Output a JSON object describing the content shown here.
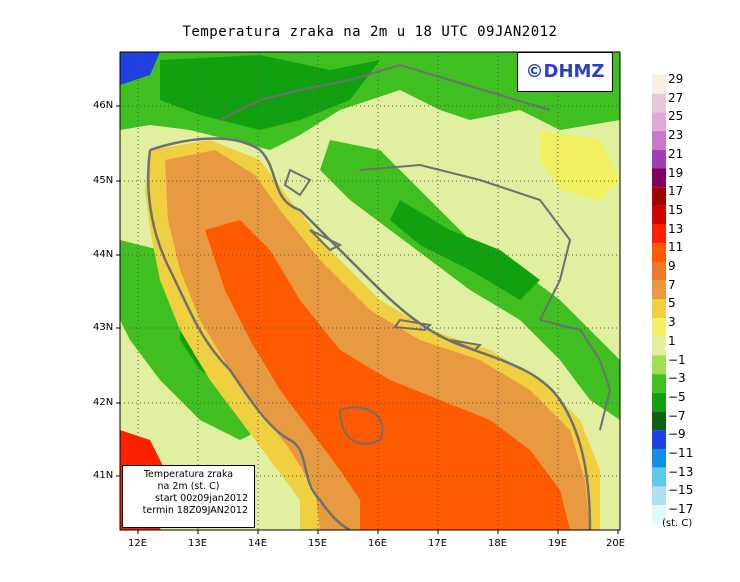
{
  "title": "Temperatura zraka na 2m u 18 UTC 09JAN2012",
  "logo": "©DHMZ",
  "info": {
    "line1": "Temperatura zraka",
    "line2": "na 2m (st. C)",
    "line3": "start 00z09jan2012",
    "line4": "termin 18Z09JAN2012"
  },
  "lat_labels": [
    "46N",
    "45N",
    "44N",
    "43N",
    "42N",
    "41N"
  ],
  "lon_labels": [
    "12E",
    "13E",
    "14E",
    "15E",
    "16E",
    "17E",
    "18E",
    "19E",
    "20E"
  ],
  "legend": {
    "labels": [
      "29",
      "27",
      "25",
      "23",
      "21",
      "19",
      "17",
      "15",
      "13",
      "11",
      "9",
      "7",
      "5",
      "3",
      "1",
      "−1",
      "−3",
      "−5",
      "−7",
      "−9",
      "−11",
      "−13",
      "−15",
      "−17"
    ],
    "colors": [
      "#fdf0e0",
      "#e8c8d8",
      "#e0a8d8",
      "#c878c8",
      "#a040b0",
      "#800060",
      "#a00000",
      "#d00000",
      "#ff2000",
      "#ff5a00",
      "#f07828",
      "#e89a40",
      "#f0d040",
      "#f0f060",
      "#e0f0a0",
      "#a0e050",
      "#40c020",
      "#10a010",
      "#106010",
      "#2040e0",
      "#1090e0",
      "#60c8e8",
      "#b0e0f0",
      "#e0f8f8"
    ],
    "unit": "(st. C)"
  }
}
